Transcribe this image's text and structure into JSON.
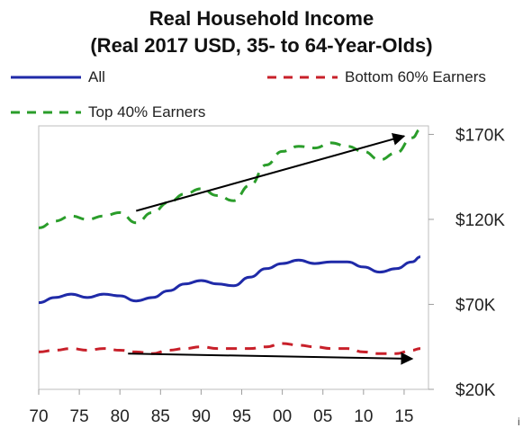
{
  "chart_data": {
    "type": "line",
    "title_line1": "Real Household Income",
    "title_line2": "(Real 2017 USD, 35- to 64-Year-Olds)",
    "xlabel": "",
    "ylabel": "",
    "x": [
      1970,
      1972,
      1974,
      1976,
      1978,
      1980,
      1982,
      1984,
      1986,
      1988,
      1990,
      1992,
      1994,
      1996,
      1998,
      2000,
      2002,
      2004,
      2006,
      2008,
      2010,
      2012,
      2014,
      2016,
      2017
    ],
    "x_tick_values": [
      1970,
      1975,
      1980,
      1985,
      1990,
      1995,
      2000,
      2005,
      2010,
      2015
    ],
    "x_tick_labels": [
      "70",
      "75",
      "80",
      "85",
      "90",
      "95",
      "00",
      "05",
      "10",
      "15"
    ],
    "y_tick_values": [
      20000,
      70000,
      120000,
      170000
    ],
    "y_tick_labels": [
      "$20K",
      "$70K",
      "$120K",
      "$170K"
    ],
    "ylim": [
      20000,
      175000
    ],
    "xlim": [
      1970,
      2018
    ],
    "grid": false,
    "legend_position": "top",
    "series": [
      {
        "name": "All",
        "color": "#1f2aa8",
        "dash": "solid",
        "values": [
          71000,
          74000,
          76000,
          74000,
          76000,
          75000,
          72000,
          74000,
          78000,
          82000,
          84000,
          82000,
          81000,
          86000,
          91000,
          94000,
          96000,
          94000,
          95000,
          95000,
          92000,
          89000,
          91000,
          95000,
          98000
        ]
      },
      {
        "name": "Bottom 60% Earners",
        "color": "#c8202a",
        "dash": "dashed",
        "values": [
          42000,
          43000,
          44000,
          43000,
          44000,
          43000,
          42000,
          41000,
          43000,
          44000,
          45000,
          44000,
          44000,
          44000,
          45000,
          47000,
          46000,
          45000,
          44000,
          44000,
          42000,
          41000,
          41000,
          43000,
          44000
        ]
      },
      {
        "name": "Top 40% Earners",
        "color": "#2a9d2a",
        "dash": "dashed",
        "values": [
          115000,
          119000,
          122000,
          120000,
          122000,
          124000,
          118000,
          124000,
          130000,
          135000,
          138000,
          134000,
          131000,
          140000,
          152000,
          160000,
          163000,
          162000,
          165000,
          163000,
          160000,
          155000,
          159000,
          168000,
          173000
        ]
      }
    ],
    "trend_arrows": [
      {
        "x1": 1982,
        "y1": 125000,
        "x2": 2015,
        "y2": 169000
      },
      {
        "x1": 1981,
        "y1": 41000,
        "x2": 2016,
        "y2": 38000
      }
    ]
  }
}
